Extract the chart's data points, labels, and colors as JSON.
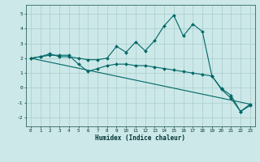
{
  "title": "",
  "xlabel": "Humidex (Indice chaleur)",
  "ylabel": "",
  "background_color": "#cce8e8",
  "grid_color": "#aacccc",
  "line_color": "#006666",
  "xlim": [
    -0.5,
    23.5
  ],
  "ylim": [
    -2.6,
    5.6
  ],
  "xticks": [
    0,
    1,
    2,
    3,
    4,
    5,
    6,
    7,
    8,
    9,
    10,
    11,
    12,
    13,
    14,
    15,
    16,
    17,
    18,
    19,
    20,
    21,
    22,
    23
  ],
  "yticks": [
    -2,
    -1,
    0,
    1,
    2,
    3,
    4,
    5
  ],
  "line1_x": [
    0,
    1,
    2,
    3,
    4,
    5,
    6,
    7,
    8,
    9,
    10,
    11,
    12,
    13,
    14,
    15,
    16,
    17,
    18,
    19,
    20,
    21,
    22,
    23
  ],
  "line1_y": [
    2.0,
    2.1,
    2.3,
    2.1,
    2.1,
    2.0,
    1.9,
    1.9,
    2.0,
    2.8,
    2.4,
    3.1,
    2.5,
    3.2,
    4.2,
    4.9,
    3.5,
    4.3,
    3.8,
    0.8,
    -0.1,
    -0.7,
    -1.6,
    -1.2
  ],
  "line2_x": [
    0,
    1,
    2,
    3,
    4,
    5,
    6,
    7,
    8,
    9,
    10,
    11,
    12,
    13,
    14,
    15,
    16,
    17,
    18,
    19,
    20,
    21,
    22,
    23
  ],
  "line2_y": [
    2.0,
    2.1,
    2.2,
    2.2,
    2.2,
    1.6,
    1.1,
    1.3,
    1.5,
    1.6,
    1.6,
    1.5,
    1.5,
    1.4,
    1.3,
    1.2,
    1.1,
    1.0,
    0.9,
    0.8,
    -0.05,
    -0.5,
    -1.6,
    -1.1
  ],
  "line3_x": [
    0,
    23
  ],
  "line3_y": [
    2.0,
    -1.1
  ]
}
